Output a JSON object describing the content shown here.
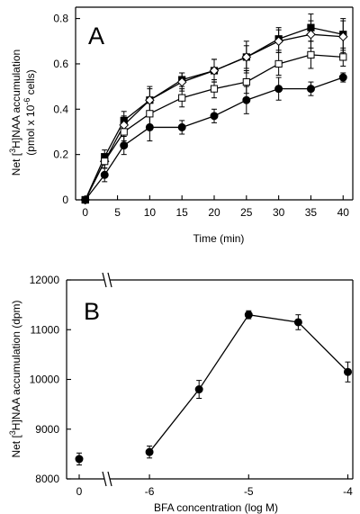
{
  "chart_data": [
    {
      "type": "line",
      "panel_label": "A",
      "xlabel": "Time (min)",
      "ylabel": {
        "pre": "Net [",
        "sup1": "3",
        "mid": "H]NAA accumulation",
        "line2_pre": "(pmol x 10",
        "sup2": "-6",
        "line2_post": " cells)"
      },
      "xlim": [
        -1.5,
        41.5
      ],
      "ylim": [
        0,
        0.85
      ],
      "xticks": [
        0,
        5,
        10,
        15,
        20,
        25,
        30,
        35,
        40
      ],
      "xtick_labels": [
        "0",
        "5",
        "10",
        "15",
        "20",
        "25",
        "30",
        "35",
        "40"
      ],
      "yticks": [
        0,
        0.2,
        0.4,
        0.6,
        0.8
      ],
      "ytick_labels": [
        "0",
        "0.2",
        "0.4",
        "0.6",
        "0.8"
      ],
      "grid": false,
      "x": [
        0,
        3,
        6,
        10,
        15,
        20,
        25,
        30,
        35,
        40
      ],
      "series": [
        {
          "marker": "filled-square",
          "values": [
            0,
            0.19,
            0.35,
            0.44,
            0.53,
            0.57,
            0.63,
            0.71,
            0.76,
            0.73
          ],
          "errors": [
            0,
            0.03,
            0.04,
            0.06,
            0.03,
            0.05,
            0.07,
            0.05,
            0.06,
            0.07
          ]
        },
        {
          "marker": "open-diamond",
          "values": [
            0,
            0.17,
            0.33,
            0.44,
            0.52,
            0.57,
            0.63,
            0.7,
            0.73,
            0.72
          ],
          "errors": [
            0,
            0.03,
            0.04,
            0.05,
            0.04,
            0.05,
            0.05,
            0.05,
            0.06,
            0.07
          ]
        },
        {
          "marker": "open-square",
          "values": [
            0,
            0.17,
            0.3,
            0.38,
            0.45,
            0.49,
            0.52,
            0.6,
            0.64,
            0.63
          ],
          "errors": [
            0,
            0.03,
            0.04,
            0.05,
            0.04,
            0.04,
            0.05,
            0.05,
            0.06,
            0.04
          ]
        },
        {
          "marker": "filled-circle",
          "values": [
            0,
            0.11,
            0.24,
            0.32,
            0.32,
            0.37,
            0.44,
            0.49,
            0.49,
            0.54
          ],
          "errors": [
            0,
            0.03,
            0.04,
            0.06,
            0.03,
            0.03,
            0.06,
            0.05,
            0.03,
            0.02
          ]
        }
      ]
    },
    {
      "type": "line",
      "panel_label": "B",
      "xlabel": "BFA concentration (log M)",
      "ylabel": {
        "pre": "Net [",
        "sup1": "3",
        "mid": "H]NAA accumulation (dpm)"
      },
      "axis_break": true,
      "xlim": [
        -6.4,
        -3.95
      ],
      "ylim": [
        8000,
        12000
      ],
      "xticks": [
        -6,
        -5,
        -4
      ],
      "xtick_labels": [
        "-6",
        "-5",
        "-4"
      ],
      "x_control_tick_label": "0",
      "yticks": [
        8000,
        9000,
        10000,
        11000,
        12000
      ],
      "ytick_labels": [
        "8000",
        "9000",
        "10000",
        "11000",
        "12000"
      ],
      "grid": false,
      "control_point": {
        "x": "0",
        "y": 8400,
        "error": 120
      },
      "x": [
        -6,
        -5.5,
        -5,
        -4.5,
        -4
      ],
      "series": [
        {
          "marker": "filled-circle",
          "values": [
            8540,
            9800,
            11300,
            11150,
            10150
          ],
          "errors": [
            120,
            180,
            80,
            150,
            200
          ]
        }
      ]
    }
  ]
}
